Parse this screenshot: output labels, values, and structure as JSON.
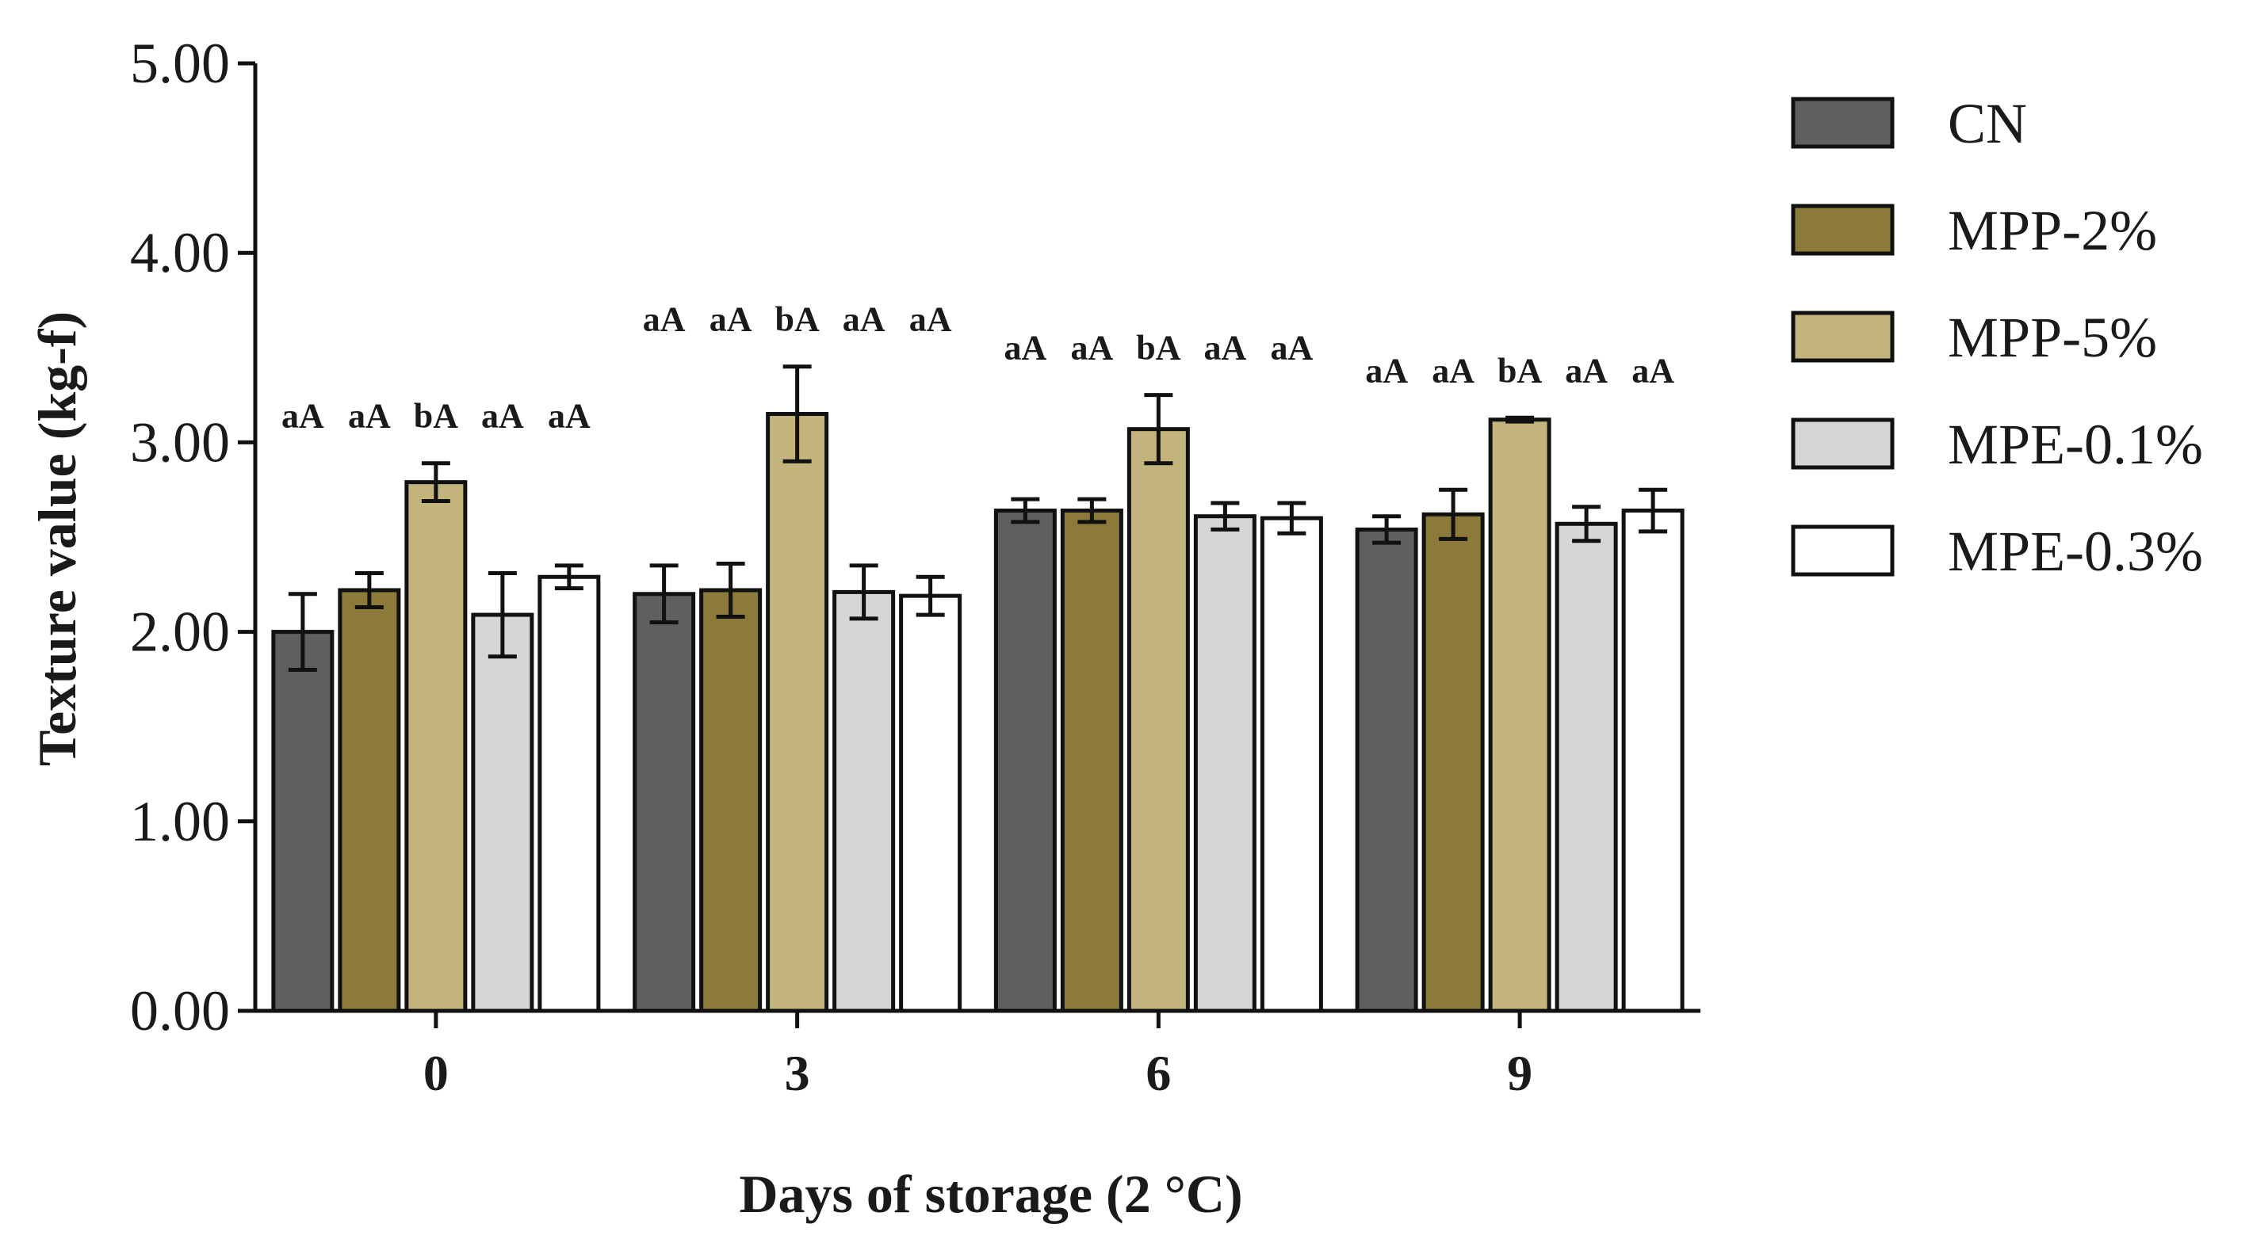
{
  "chart_data": {
    "type": "bar",
    "title": "",
    "xlabel": "Days of storage (2 °C)",
    "ylabel": "Texture value (kg-f)",
    "ylim": [
      0,
      5
    ],
    "yticks": [
      0,
      1,
      2,
      3,
      4,
      5
    ],
    "ytick_labels": [
      "0.00",
      "1.00",
      "2.00",
      "3.00",
      "4.00",
      "5.00"
    ],
    "categories": [
      "0",
      "3",
      "6",
      "9"
    ],
    "legend_position": "right",
    "series": [
      {
        "name": "CN",
        "color": "#5f5f5f",
        "values": [
          2.0,
          2.2,
          2.64,
          2.54
        ],
        "errors": [
          0.2,
          0.15,
          0.06,
          0.07
        ],
        "labels": [
          "aA",
          "aA",
          "aA",
          "aA"
        ]
      },
      {
        "name": "MPP-2%",
        "color": "#8b7a3a",
        "values": [
          2.22,
          2.22,
          2.64,
          2.62
        ],
        "errors": [
          0.09,
          0.14,
          0.06,
          0.13
        ],
        "labels": [
          "aA",
          "aA",
          "aA",
          "aA"
        ]
      },
      {
        "name": "MPP-5%",
        "color": "#c2b47c",
        "values": [
          2.79,
          3.15,
          3.07,
          3.12
        ],
        "errors": [
          0.1,
          0.25,
          0.18,
          0.01
        ],
        "labels": [
          "bA",
          "bA",
          "bA",
          "bA"
        ]
      },
      {
        "name": "MPE-0.1%",
        "color": "#d6d6d6",
        "values": [
          2.09,
          2.21,
          2.61,
          2.57
        ],
        "errors": [
          0.22,
          0.14,
          0.07,
          0.09
        ],
        "labels": [
          "aA",
          "aA",
          "aA",
          "aA"
        ]
      },
      {
        "name": "MPE-0.3%",
        "color": "#ffffff",
        "values": [
          2.29,
          2.19,
          2.6,
          2.64
        ],
        "errors": [
          0.06,
          0.1,
          0.08,
          0.11
        ],
        "labels": [
          "aA",
          "aA",
          "aA",
          "aA"
        ]
      }
    ]
  }
}
